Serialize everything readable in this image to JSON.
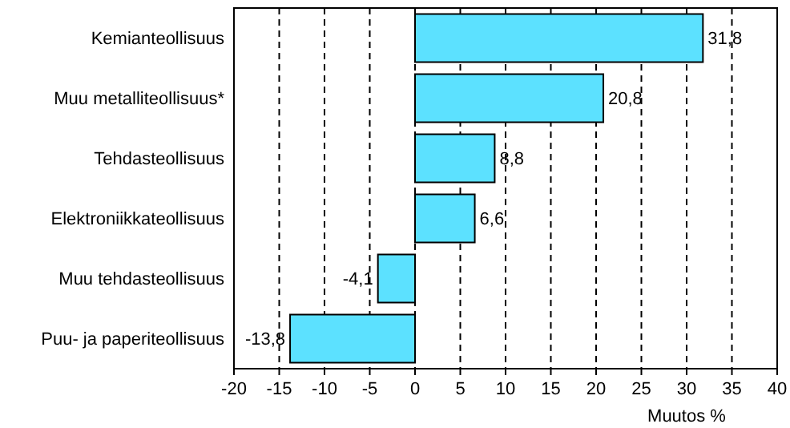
{
  "chart_data": {
    "type": "bar",
    "orientation": "horizontal",
    "xlabel": "Muutos %",
    "categories": [
      "Kemianteollisuus",
      "Muu metalliteollisuus*",
      "Tehdasteollisuus",
      "Elektroniikkateollisuus",
      "Muu tehdasteollisuus",
      "Puu- ja paperiteollisuus"
    ],
    "values": [
      31.8,
      20.8,
      8.8,
      6.6,
      -4.1,
      -13.8
    ],
    "value_labels": [
      "31,8",
      "20,8",
      "8,8",
      "6,6",
      "-4,1",
      "-13,8"
    ],
    "color": "#5ce1ff",
    "xlim": [
      -20,
      40
    ],
    "xticks": [
      -20,
      -15,
      -10,
      -5,
      0,
      5,
      10,
      15,
      20,
      25,
      30,
      35,
      40
    ],
    "grid": "x"
  }
}
